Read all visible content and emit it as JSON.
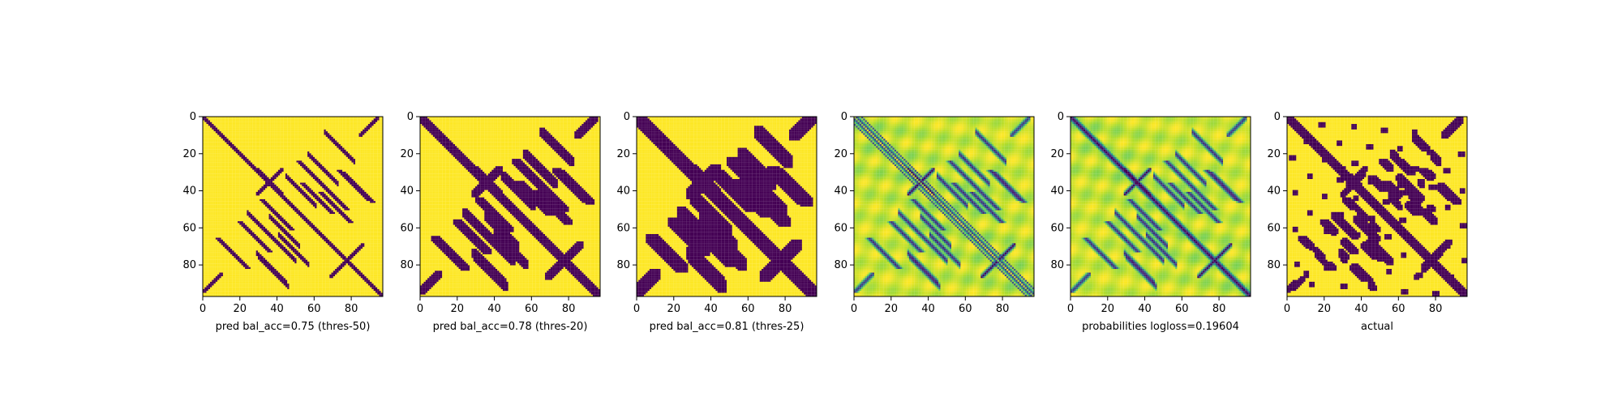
{
  "chart_data": [
    {
      "type": "heatmap",
      "title": "",
      "xlabel": "pred bal_acc=0.75 (thres-50)",
      "ylabel": "",
      "matrix_size": 98,
      "xlim": [
        0,
        97
      ],
      "ylim": [
        97,
        0
      ],
      "xticks": [
        0,
        20,
        40,
        60,
        80
      ],
      "yticks": [
        0,
        20,
        40,
        60,
        80
      ],
      "colormap": "viridis",
      "value_type": "binary",
      "dilate": 0
    },
    {
      "type": "heatmap",
      "title": "",
      "xlabel": "pred bal_acc=0.78 (thres-20)",
      "ylabel": "",
      "matrix_size": 98,
      "xlim": [
        0,
        97
      ],
      "ylim": [
        97,
        0
      ],
      "xticks": [
        0,
        20,
        40,
        60,
        80
      ],
      "yticks": [
        0,
        20,
        40,
        60,
        80
      ],
      "colormap": "viridis",
      "value_type": "binary",
      "dilate": 1
    },
    {
      "type": "heatmap",
      "title": "",
      "xlabel": "pred bal_acc=0.81 (thres-25)",
      "ylabel": "",
      "matrix_size": 98,
      "xlim": [
        0,
        97
      ],
      "ylim": [
        97,
        0
      ],
      "xticks": [
        0,
        20,
        40,
        60,
        80
      ],
      "yticks": [
        0,
        20,
        40,
        60,
        80
      ],
      "colormap": "viridis",
      "value_type": "binary",
      "dilate": 2
    },
    {
      "type": "heatmap",
      "title": "",
      "xlabel": "",
      "ylabel": "",
      "matrix_size": 98,
      "xlim": [
        0,
        97
      ],
      "ylim": [
        97,
        0
      ],
      "xticks": [
        0,
        20,
        40,
        60,
        80
      ],
      "yticks": [
        0,
        20,
        40,
        60,
        80
      ],
      "colormap": "viridis",
      "value_type": "continuous",
      "variant": "off-diagonal"
    },
    {
      "type": "heatmap",
      "title": "",
      "xlabel": "probabilities logloss=0.19604",
      "ylabel": "",
      "matrix_size": 98,
      "xlim": [
        0,
        97
      ],
      "ylim": [
        97,
        0
      ],
      "xticks": [
        0,
        20,
        40,
        60,
        80
      ],
      "yticks": [
        0,
        20,
        40,
        60,
        80
      ],
      "colormap": "viridis",
      "value_type": "continuous",
      "variant": "full"
    },
    {
      "type": "heatmap",
      "title": "",
      "xlabel": "actual",
      "ylabel": "",
      "matrix_size": 98,
      "xlim": [
        0,
        97
      ],
      "ylim": [
        97,
        0
      ],
      "xticks": [
        0,
        20,
        40,
        60,
        80
      ],
      "yticks": [
        0,
        20,
        40,
        60,
        80
      ],
      "colormap": "viridis",
      "value_type": "binary",
      "variant": "actual",
      "dilate": 1
    }
  ],
  "colors": {
    "viridis_low": "#440154",
    "viridis_high": "#fde725",
    "background": "#ffffff",
    "axis": "#000000"
  }
}
